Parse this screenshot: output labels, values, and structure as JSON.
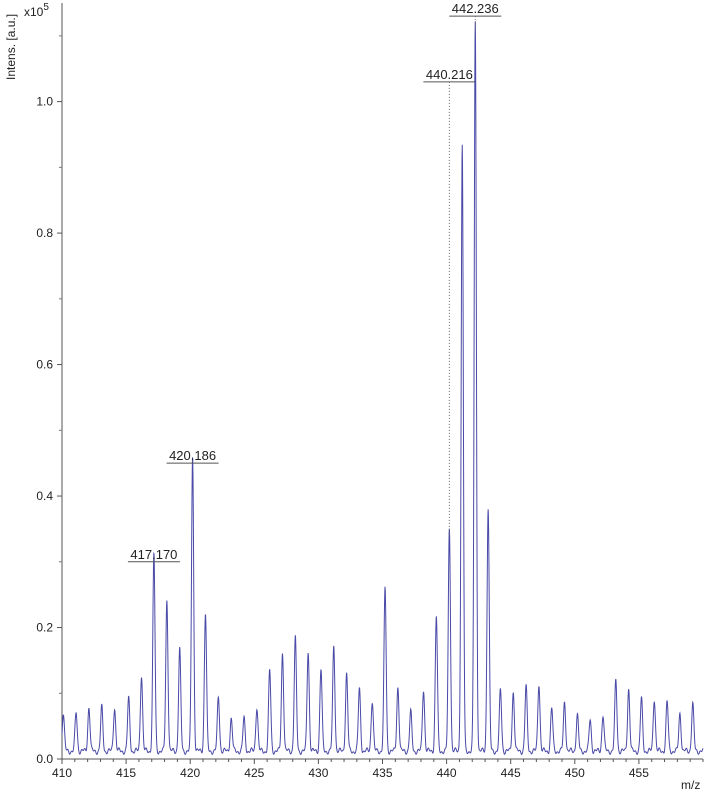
{
  "chart_data": {
    "type": "line",
    "title": "",
    "ylabel": "Intens. [a.u.]",
    "y_multiplier": "x10",
    "y_multiplier_exp": "5",
    "xlabel": "m/z",
    "xlim": [
      410,
      460
    ],
    "ylim": [
      0,
      1.15
    ],
    "x_ticks": [
      410,
      415,
      420,
      425,
      430,
      435,
      440,
      445,
      450,
      455
    ],
    "y_ticks": [
      0.0,
      0.2,
      0.4,
      0.6,
      0.8,
      1.0
    ],
    "y_tick_labels": [
      "0.0",
      "0.2",
      "0.4",
      "0.6",
      "0.8",
      "1.0"
    ],
    "series_color": "#4a4aa8",
    "baseline": 0.012,
    "peaks": [
      {
        "x": 410.1,
        "y": 0.057
      },
      {
        "x": 411.1,
        "y": 0.058
      },
      {
        "x": 412.1,
        "y": 0.067
      },
      {
        "x": 413.1,
        "y": 0.067
      },
      {
        "x": 414.1,
        "y": 0.066
      },
      {
        "x": 415.2,
        "y": 0.08
      },
      {
        "x": 416.2,
        "y": 0.116
      },
      {
        "x": 417.17,
        "y": 0.3
      },
      {
        "x": 418.18,
        "y": 0.23
      },
      {
        "x": 419.18,
        "y": 0.155
      },
      {
        "x": 420.186,
        "y": 0.45
      },
      {
        "x": 421.19,
        "y": 0.21
      },
      {
        "x": 422.2,
        "y": 0.082
      },
      {
        "x": 423.2,
        "y": 0.05
      },
      {
        "x": 424.2,
        "y": 0.05
      },
      {
        "x": 425.2,
        "y": 0.067
      },
      {
        "x": 426.2,
        "y": 0.123
      },
      {
        "x": 427.2,
        "y": 0.15
      },
      {
        "x": 428.2,
        "y": 0.172
      },
      {
        "x": 429.2,
        "y": 0.152
      },
      {
        "x": 430.2,
        "y": 0.125
      },
      {
        "x": 431.2,
        "y": 0.16
      },
      {
        "x": 432.2,
        "y": 0.118
      },
      {
        "x": 433.2,
        "y": 0.095
      },
      {
        "x": 434.2,
        "y": 0.077
      },
      {
        "x": 435.2,
        "y": 0.248
      },
      {
        "x": 436.2,
        "y": 0.098
      },
      {
        "x": 437.2,
        "y": 0.06
      },
      {
        "x": 438.2,
        "y": 0.094
      },
      {
        "x": 439.2,
        "y": 0.205
      },
      {
        "x": 440.216,
        "y": 0.34
      },
      {
        "x": 441.22,
        "y": 0.92
      },
      {
        "x": 442.236,
        "y": 1.11
      },
      {
        "x": 443.24,
        "y": 0.37
      },
      {
        "x": 444.2,
        "y": 0.093
      },
      {
        "x": 445.2,
        "y": 0.09
      },
      {
        "x": 446.2,
        "y": 0.098
      },
      {
        "x": 447.2,
        "y": 0.103
      },
      {
        "x": 448.2,
        "y": 0.065
      },
      {
        "x": 449.2,
        "y": 0.075
      },
      {
        "x": 450.2,
        "y": 0.055
      },
      {
        "x": 451.2,
        "y": 0.048
      },
      {
        "x": 452.2,
        "y": 0.055
      },
      {
        "x": 453.2,
        "y": 0.107
      },
      {
        "x": 454.2,
        "y": 0.095
      },
      {
        "x": 455.2,
        "y": 0.08
      },
      {
        "x": 456.2,
        "y": 0.08
      },
      {
        "x": 457.2,
        "y": 0.075
      },
      {
        "x": 458.2,
        "y": 0.058
      },
      {
        "x": 459.2,
        "y": 0.072
      }
    ],
    "annotations": [
      {
        "label": "417.170",
        "x": 417.17,
        "y": 0.3
      },
      {
        "label": "420.186",
        "x": 420.186,
        "y": 0.45
      },
      {
        "label": "440.216",
        "x": 440.216,
        "y": 1.03
      },
      {
        "label": "442.236",
        "x": 442.236,
        "y": 1.13
      }
    ]
  }
}
